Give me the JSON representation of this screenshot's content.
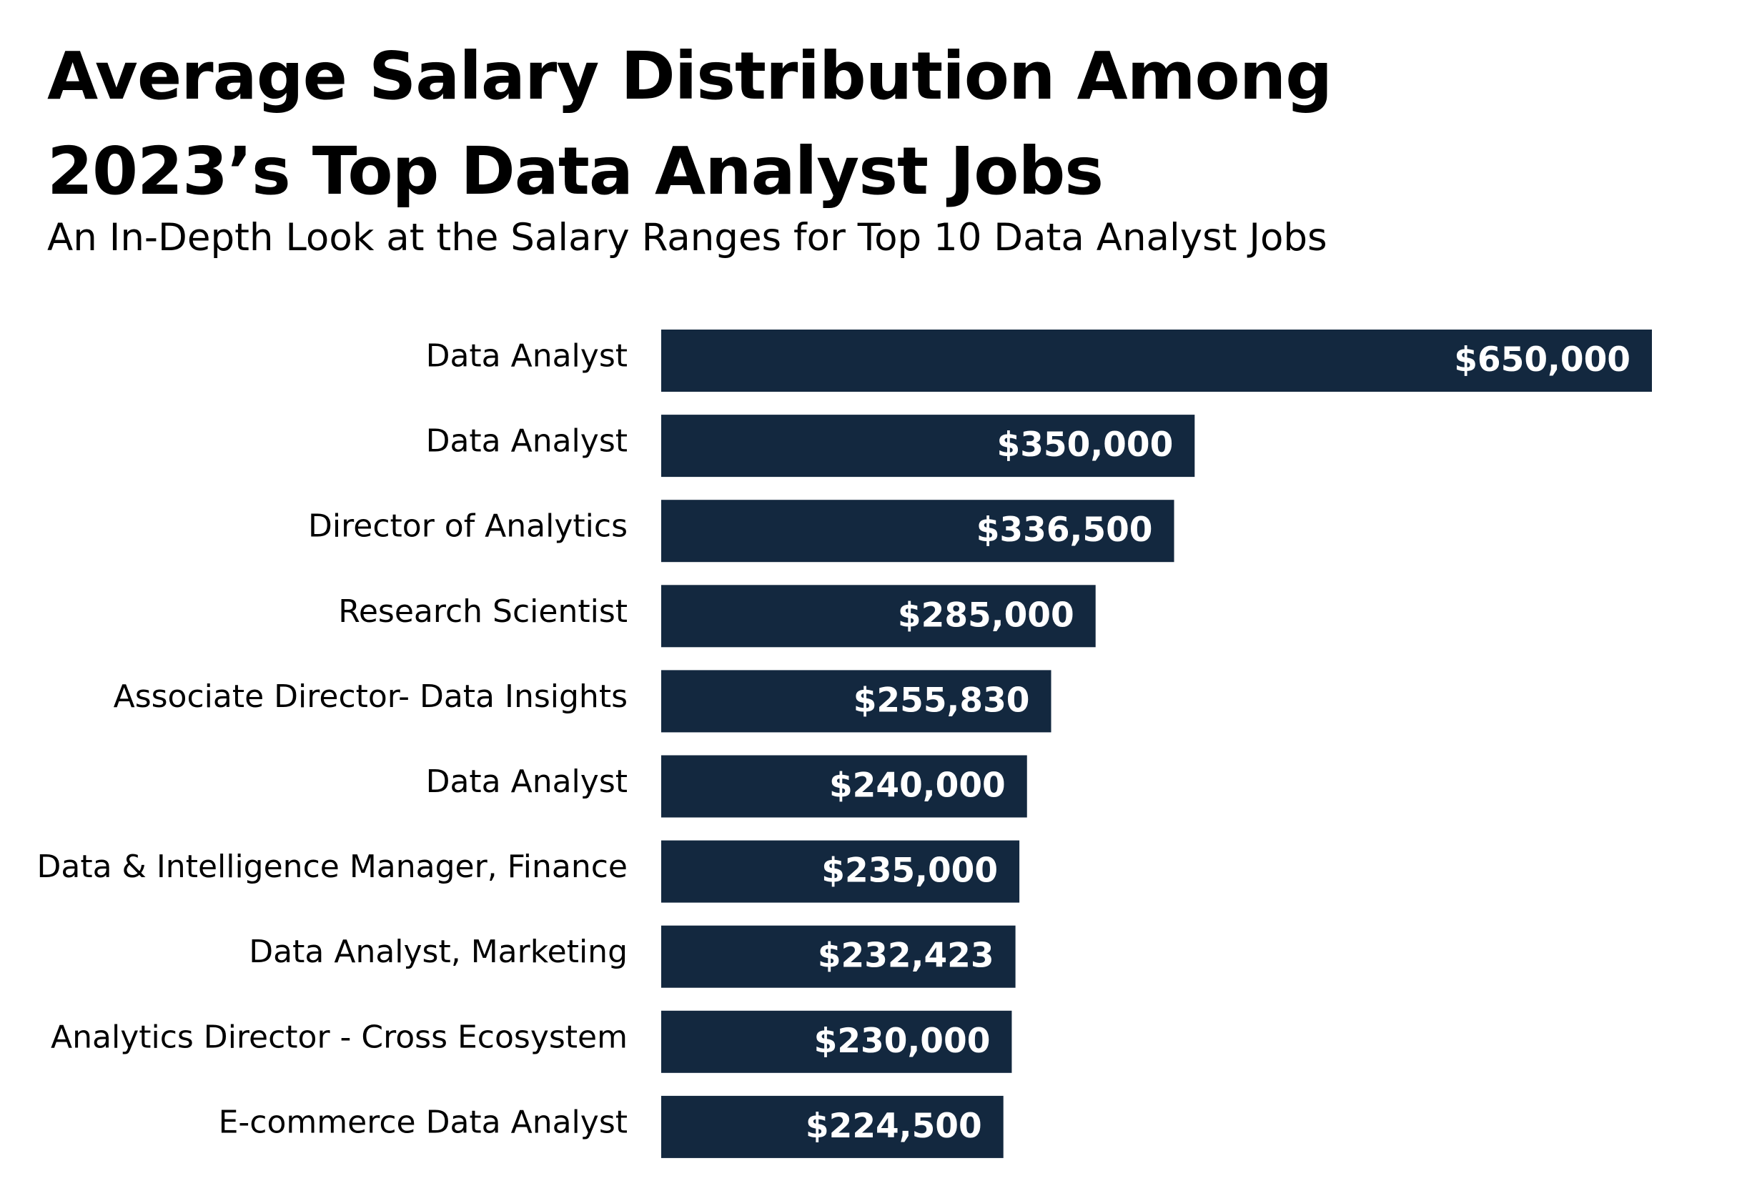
{
  "chart_data": {
    "type": "bar",
    "orientation": "horizontal",
    "title": "Average Salary Distribution Among 2023’s Top Data Analyst Jobs",
    "subtitle": "An In-Depth Look at the Salary Ranges for Top 10 Data Analyst Jobs",
    "categories": [
      "Data Analyst",
      "Data Analyst",
      "Director of Analytics",
      "Research Scientist",
      "Associate Director- Data Insights",
      "Data Analyst",
      "Data & Intelligence Manager, Finance",
      "Data Analyst, Marketing",
      "Analytics Director - Cross Ecosystem",
      "E-commerce Data Analyst"
    ],
    "values": [
      650000,
      350000,
      336500,
      285000,
      255830,
      240000,
      235000,
      232423,
      230000,
      224500
    ],
    "value_labels": [
      "$650,000",
      "$350,000",
      "$336,500",
      "$285,000",
      "$255,830",
      "$240,000",
      "$235,000",
      "$232,423",
      "$230,000",
      "$224,500"
    ],
    "xlim": [
      0,
      650000
    ],
    "bar_color": "#13283f",
    "value_label_color": "#ffffff",
    "grid": false,
    "legend": "none",
    "axes_visible": false
  }
}
